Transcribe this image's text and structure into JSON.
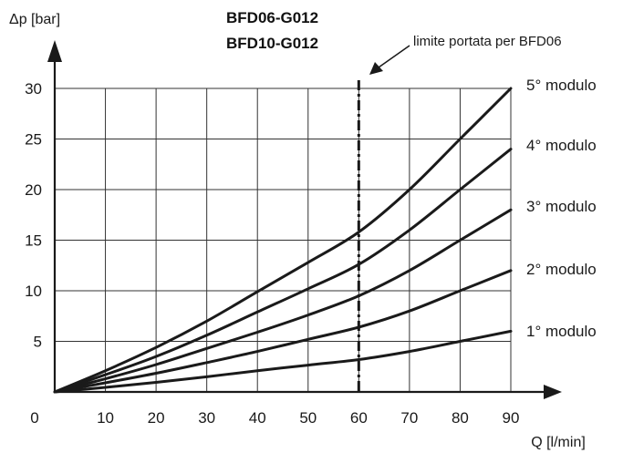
{
  "chart_data": {
    "type": "line",
    "title": [
      "BFD06-G012",
      "BFD10-G012"
    ],
    "xlabel": "Q [l/min]",
    "ylabel": "Δp [bar]",
    "xlim": [
      0,
      90
    ],
    "ylim": [
      0,
      30
    ],
    "x_ticks": [
      0,
      10,
      20,
      30,
      40,
      50,
      60,
      70,
      80,
      90
    ],
    "y_ticks": [
      5,
      10,
      15,
      20,
      25,
      30
    ],
    "grid": true,
    "x": [
      0,
      10,
      20,
      30,
      40,
      50,
      60,
      70,
      80,
      90
    ],
    "series": [
      {
        "name": "1° modulo",
        "values": [
          0,
          0.45,
          0.95,
          1.5,
          2.1,
          2.65,
          3.2,
          4.0,
          5.0,
          6.0
        ]
      },
      {
        "name": "2° modulo",
        "values": [
          0,
          0.9,
          1.85,
          2.9,
          4.0,
          5.2,
          6.4,
          8.0,
          10.0,
          12.0
        ]
      },
      {
        "name": "3° modulo",
        "values": [
          0,
          1.3,
          2.7,
          4.3,
          5.9,
          7.6,
          9.5,
          12.0,
          15.0,
          18.0
        ]
      },
      {
        "name": "4° modulo",
        "values": [
          0,
          1.7,
          3.5,
          5.6,
          7.9,
          10.2,
          12.6,
          16.0,
          20.0,
          24.0
        ]
      },
      {
        "name": "5° modulo",
        "values": [
          0,
          2.1,
          4.4,
          7.0,
          9.9,
          12.8,
          15.8,
          20.0,
          25.0,
          30.0
        ]
      }
    ],
    "annotation": {
      "text": "limite portata per BFD06",
      "x": 60
    },
    "colors": {
      "line": "#1a1a1a",
      "grid": "#333333"
    }
  }
}
